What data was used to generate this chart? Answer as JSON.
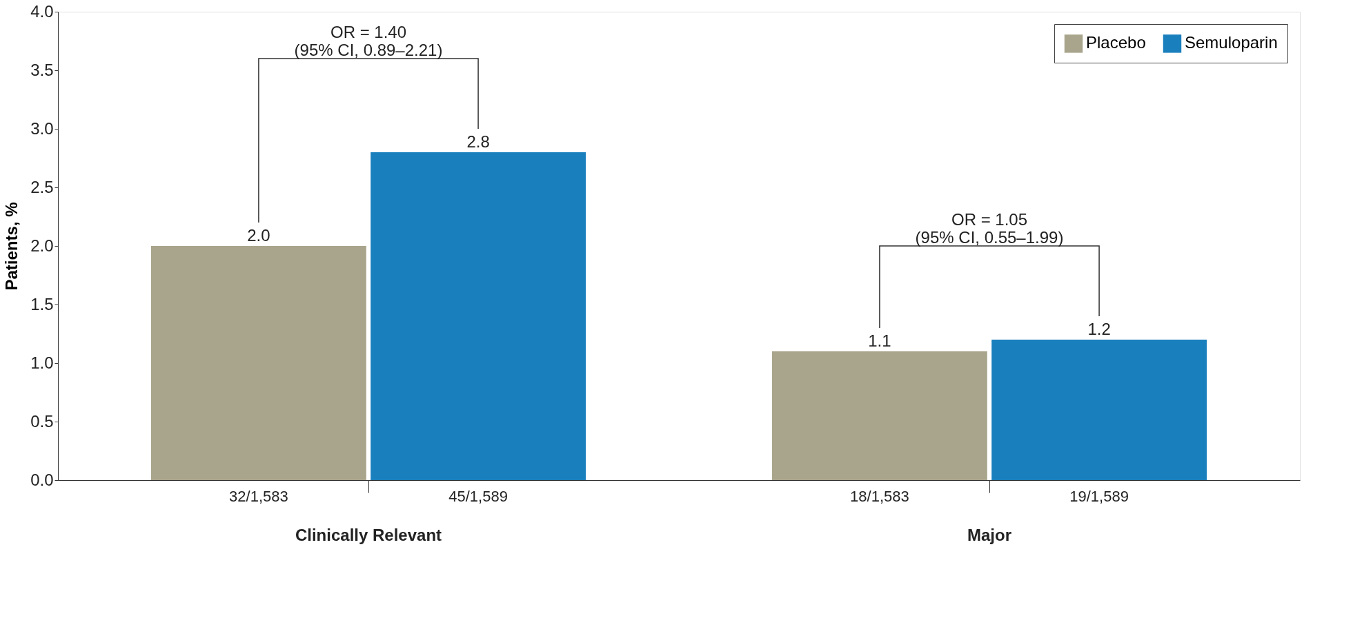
{
  "chart_data": {
    "type": "bar",
    "ylabel": "Patients, %",
    "categories": [
      "Clinically Relevant",
      "Major"
    ],
    "series": [
      {
        "name": "Placebo",
        "color": "#a9a58c",
        "values": [
          2.0,
          1.1
        ],
        "value_labels": [
          "2.0",
          "1.1"
        ]
      },
      {
        "name": "Semuloparin",
        "color": "#1a7fbd",
        "values": [
          2.8,
          1.2
        ],
        "value_labels": [
          "2.8",
          "1.2"
        ]
      }
    ],
    "ylim": [
      0,
      4
    ],
    "yticks": [
      {
        "value": 0,
        "label": "0.0"
      },
      {
        "value": 0.5,
        "label": "0.5"
      },
      {
        "value": 1,
        "label": "1.0"
      },
      {
        "value": 1.5,
        "label": "1.5"
      },
      {
        "value": 2,
        "label": "2.0"
      },
      {
        "value": 2.5,
        "label": "2.5"
      },
      {
        "value": 3,
        "label": "3.0"
      },
      {
        "value": 3.5,
        "label": "3.5"
      },
      {
        "value": 4,
        "label": "4.0"
      }
    ],
    "legend": "top right",
    "grid": false,
    "annotations": [
      "32/1,583",
      "18/1,583",
      "45/1,589",
      "19/1,589",
      "OR = 1.40\n(95% CI, 0.89–2.21)",
      "OR = 1.05\n(95% CI, 0.55–1.99)"
    ]
  }
}
